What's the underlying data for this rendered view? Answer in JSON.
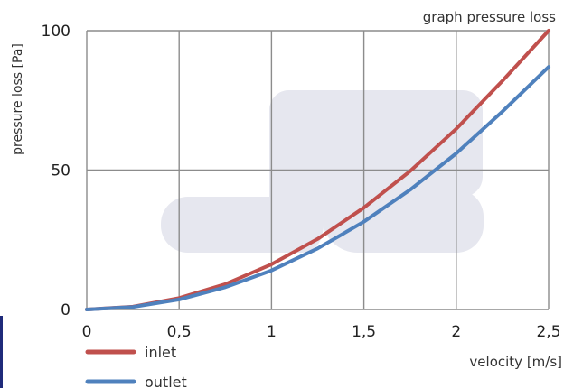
{
  "chart_data": {
    "type": "line",
    "title": "graph pressure loss",
    "xlabel": "velocity [m/s]",
    "ylabel": "pressure loss [Pa]",
    "xlim": [
      0,
      2.5
    ],
    "ylim": [
      0,
      100
    ],
    "x_ticks": [
      0,
      0.5,
      1,
      1.5,
      2,
      2.5
    ],
    "x_tick_labels": [
      "0",
      "0,5",
      "1",
      "1,5",
      "2",
      "2,5"
    ],
    "y_ticks": [
      0,
      50,
      100
    ],
    "y_tick_labels": [
      "0",
      "50",
      "100"
    ],
    "grid": true,
    "legend": "bottom-left",
    "x": [
      0,
      0.25,
      0.5,
      0.75,
      1,
      1.25,
      1.5,
      1.75,
      2,
      2.25,
      2.5
    ],
    "series": [
      {
        "name": "inlet",
        "color": "#c0504d",
        "values": [
          0,
          1.0,
          4.1,
          9.1,
          16.2,
          25.3,
          36.5,
          49.6,
          64.8,
          82.0,
          100.0
        ]
      },
      {
        "name": "outlet",
        "color": "#4f81bd",
        "values": [
          0,
          0.9,
          3.6,
          8.0,
          14.0,
          21.9,
          31.5,
          42.9,
          56.0,
          71.0,
          87.0
        ]
      }
    ]
  },
  "colors": {
    "grid": "#8c8c8c",
    "axis": "#333333",
    "watermark": "#e6e7ef"
  }
}
